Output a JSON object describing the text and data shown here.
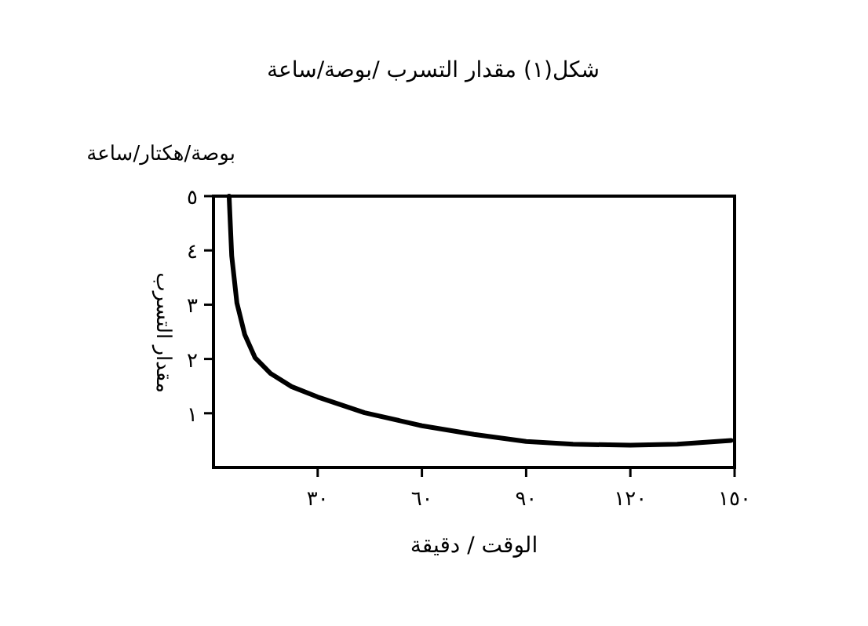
{
  "chart_data": {
    "type": "line",
    "title": "شكل(١) مقدار التسرب /بوصة/ساعة",
    "xlabel": "الوقت / دقيقة",
    "ylabel": "مقدار التسرب",
    "annotations": [
      "بوصة/هكتار/ساعة"
    ],
    "x": [
      4.5,
      5.25,
      6.75,
      9,
      12,
      16.5,
      22.5,
      30,
      43.5,
      60,
      75,
      90,
      103.5,
      120,
      133.5,
      149
    ],
    "series": [
      {
        "color": "#000000",
        "values": [
          5.0,
          3.9,
          3.03,
          2.45,
          2.02,
          1.73,
          1.49,
          1.3,
          1.01,
          0.77,
          0.61,
          0.48,
          0.43,
          0.41,
          0.43,
          0.5
        ]
      }
    ],
    "xlim": [
      0,
      150
    ],
    "ylim": [
      0,
      5
    ],
    "xticks": [
      {
        "value": 30,
        "label": "٣٠"
      },
      {
        "value": 60,
        "label": "٦٠"
      },
      {
        "value": 90,
        "label": "٩٠"
      },
      {
        "value": 120,
        "label": "١٢٠"
      },
      {
        "value": 150,
        "label": "١٥٠"
      }
    ],
    "yticks": [
      {
        "value": 1,
        "label": "١"
      },
      {
        "value": 2,
        "label": "٢"
      },
      {
        "value": 3,
        "label": "٣"
      },
      {
        "value": 4,
        "label": "٤"
      },
      {
        "value": 5,
        "label": "٥"
      }
    ]
  }
}
